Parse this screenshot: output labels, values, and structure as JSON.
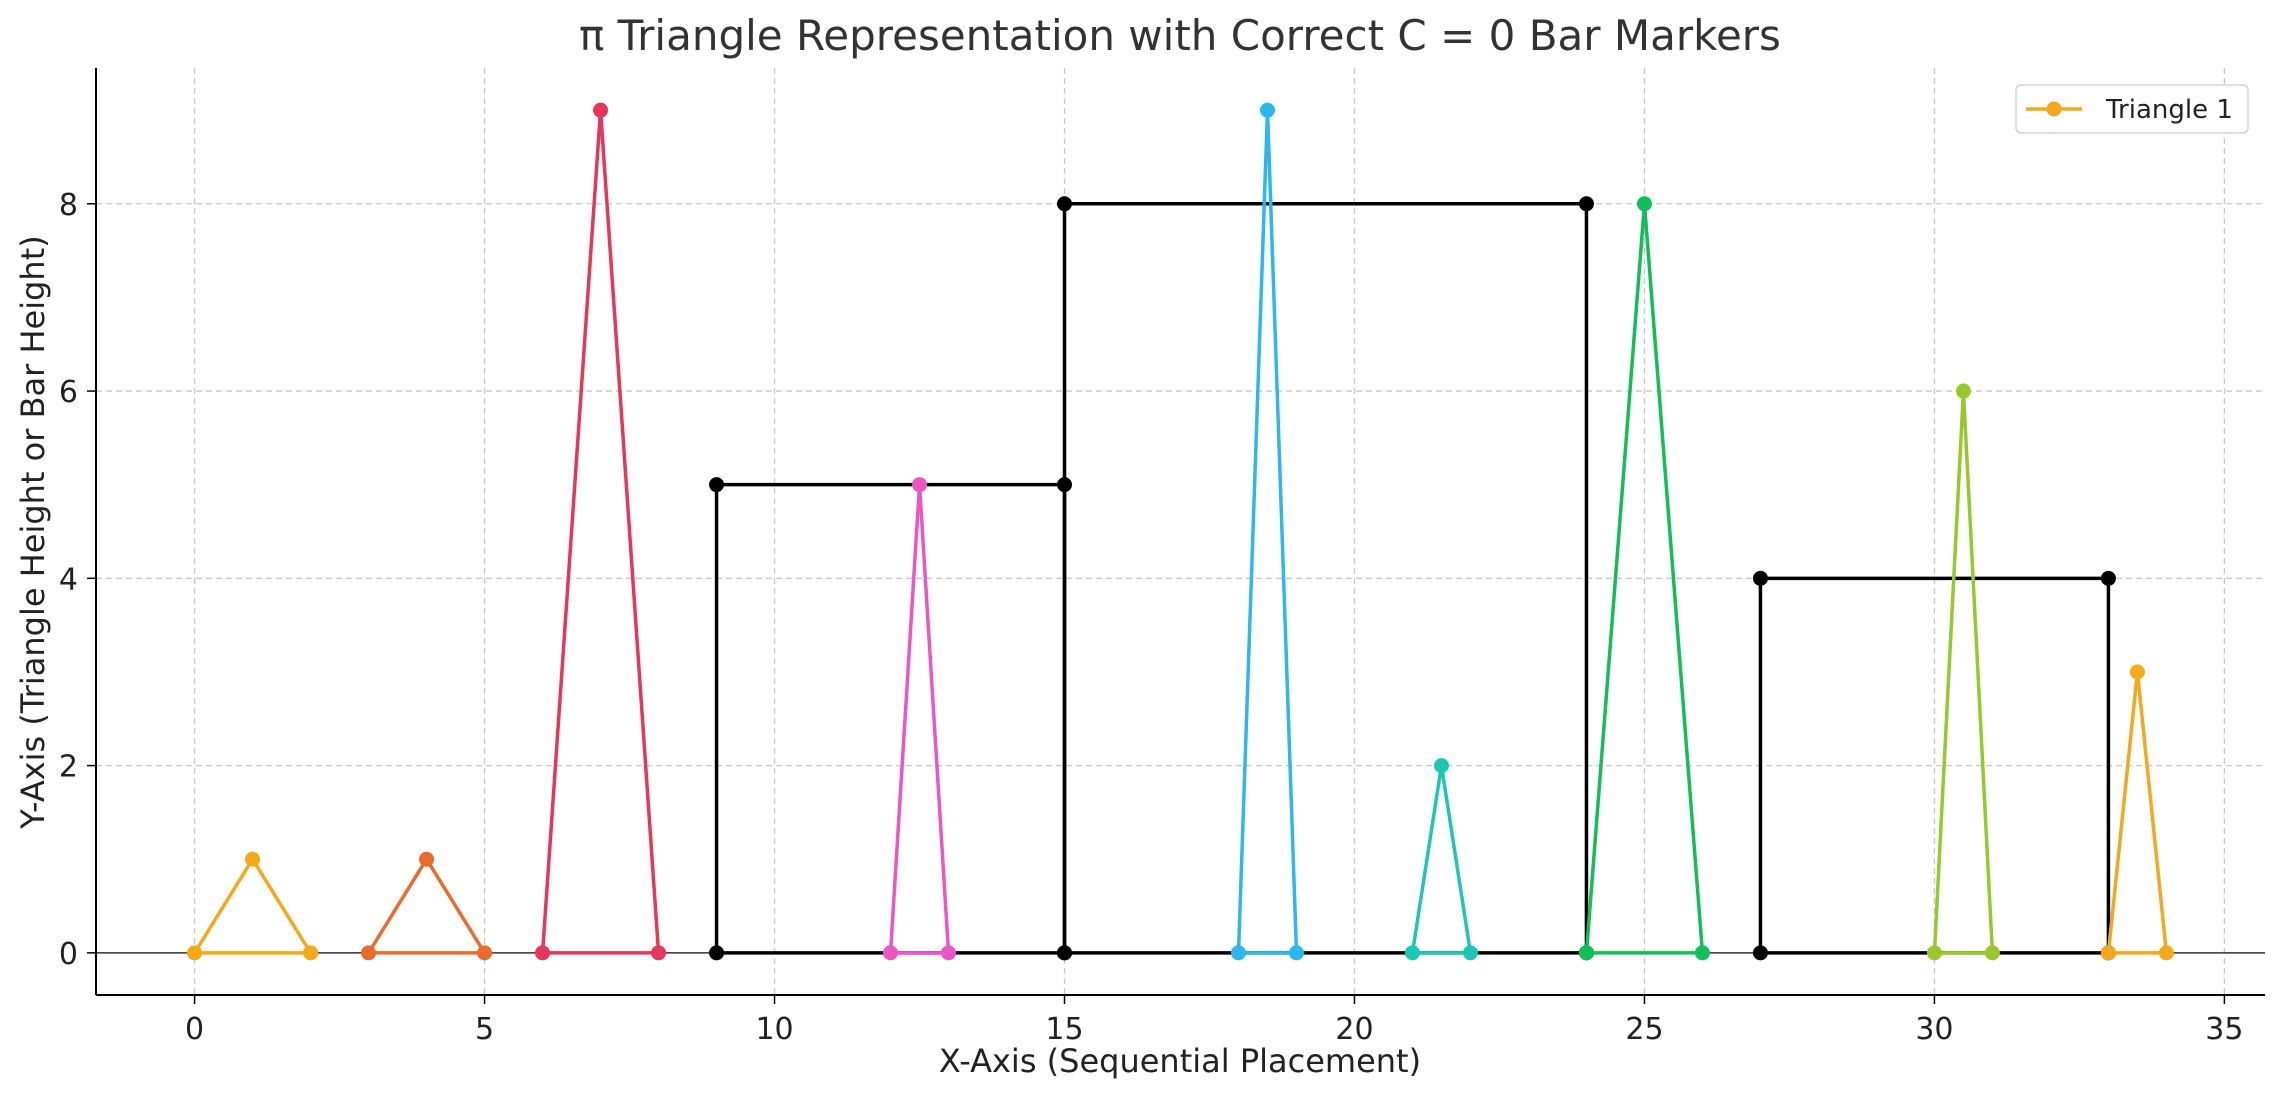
{
  "chart_data": {
    "type": "line",
    "title": "π Triangle Representation with Correct C = 0 Bar Markers",
    "xlabel": "X-Axis (Sequential Placement)",
    "ylabel": "Y-Axis (Triangle Height or Bar Height)",
    "xlim": [
      -1.7,
      35.7
    ],
    "ylim": [
      -0.45,
      9.45
    ],
    "xticks": [
      0,
      5,
      10,
      15,
      20,
      25,
      30,
      35
    ],
    "yticks": [
      0,
      2,
      4,
      6,
      8
    ],
    "grid": true,
    "zero_line": true,
    "legend": {
      "placement": "top-right",
      "entries": [
        {
          "label": "Triangle 1",
          "color": "#f5a818"
        }
      ]
    },
    "triangles": [
      {
        "color": "#f5a818",
        "x": [
          0,
          1,
          2
        ],
        "y": [
          0,
          1,
          0
        ]
      },
      {
        "color": "#eb6b2a",
        "x": [
          3,
          4,
          5
        ],
        "y": [
          0,
          1,
          0
        ]
      },
      {
        "color": "#e8355a",
        "x": [
          6,
          7,
          8
        ],
        "y": [
          0,
          9,
          0
        ]
      },
      {
        "color": "#ee55c4",
        "x": [
          12,
          12.5,
          13
        ],
        "y": [
          0,
          5,
          0
        ]
      },
      {
        "color": "#2cb8ef",
        "x": [
          18,
          18.5,
          19
        ],
        "y": [
          0,
          9,
          0
        ]
      },
      {
        "color": "#1cc8b3",
        "x": [
          21,
          21.5,
          22
        ],
        "y": [
          0,
          2,
          0
        ]
      },
      {
        "color": "#0fbf5a",
        "x": [
          24,
          25,
          26
        ],
        "y": [
          0,
          8,
          0
        ]
      },
      {
        "color": "#97c92a",
        "x": [
          30,
          30.5,
          31
        ],
        "y": [
          0,
          6,
          0
        ]
      },
      {
        "color": "#f5a818",
        "x": [
          33,
          33.5,
          34
        ],
        "y": [
          0,
          3,
          0
        ]
      }
    ],
    "bars": [
      {
        "color": "#000000",
        "x0": 9,
        "x1": 15,
        "height": 5
      },
      {
        "color": "#000000",
        "x0": 15,
        "x1": 24,
        "height": 8
      },
      {
        "color": "#000000",
        "x0": 27,
        "x1": 33,
        "height": 4
      }
    ]
  }
}
